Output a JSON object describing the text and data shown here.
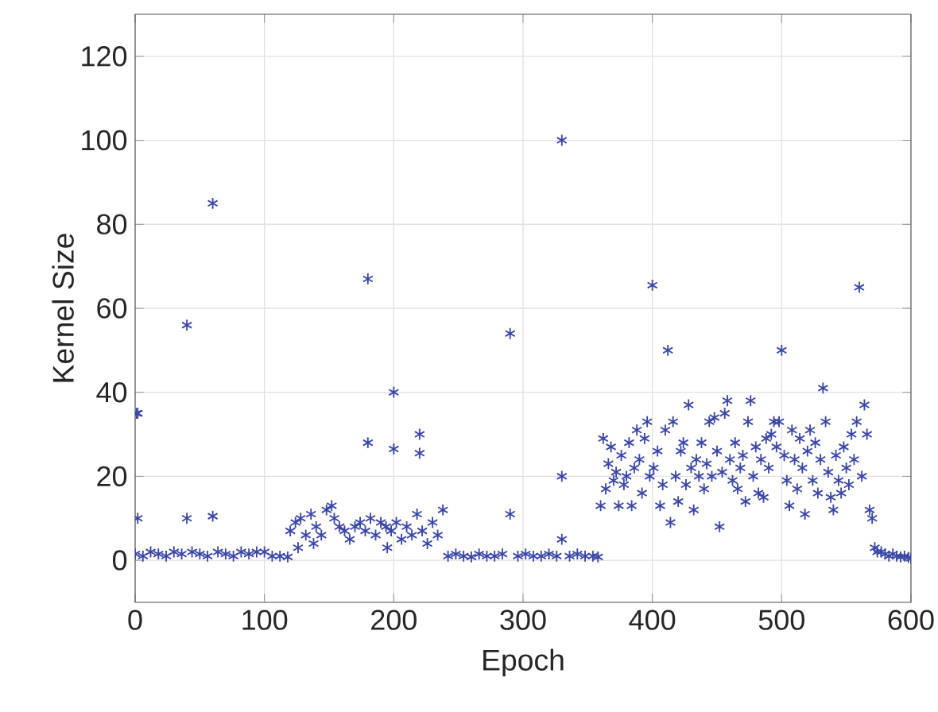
{
  "chart_data": {
    "type": "scatter",
    "xlabel": "Epoch",
    "ylabel": "Kernel Size",
    "xlim": [
      0,
      600
    ],
    "ylim": [
      -10,
      130
    ],
    "xticks": [
      0,
      100,
      200,
      300,
      400,
      500,
      600
    ],
    "yticks": [
      0,
      20,
      40,
      60,
      80,
      100,
      120
    ],
    "grid": true,
    "marker": "cross",
    "series": [
      {
        "color": "#3a47a6",
        "x": [
          1,
          2,
          2,
          40,
          40,
          60,
          60,
          0,
          6,
          12,
          18,
          24,
          30,
          36,
          44,
          50,
          56,
          64,
          70,
          76,
          82,
          88,
          94,
          100,
          106,
          112,
          118,
          120,
          124,
          126,
          128,
          132,
          136,
          138,
          140,
          144,
          148,
          152,
          154,
          158,
          162,
          166,
          170,
          174,
          178,
          180,
          180,
          182,
          186,
          190,
          194,
          195,
          198,
          200,
          200,
          202,
          206,
          210,
          214,
          218,
          220,
          220,
          222,
          226,
          230,
          234,
          238,
          242,
          248,
          254,
          260,
          266,
          272,
          278,
          284,
          290,
          290,
          296,
          302,
          308,
          314,
          320,
          326,
          330,
          330,
          330,
          336,
          342,
          348,
          354,
          358,
          360,
          362,
          364,
          366,
          368,
          370,
          372,
          374,
          376,
          378,
          380,
          382,
          384,
          386,
          388,
          390,
          392,
          394,
          396,
          398,
          400,
          401,
          404,
          406,
          408,
          410,
          412,
          414,
          416,
          418,
          420,
          422,
          424,
          426,
          428,
          430,
          432,
          434,
          436,
          438,
          440,
          442,
          444,
          446,
          448,
          450,
          452,
          454,
          456,
          458,
          460,
          462,
          464,
          466,
          468,
          470,
          472,
          474,
          476,
          478,
          480,
          482,
          484,
          486,
          488,
          490,
          492,
          494,
          496,
          498,
          500,
          502,
          504,
          506,
          508,
          510,
          512,
          514,
          516,
          518,
          520,
          522,
          524,
          526,
          528,
          530,
          532,
          534,
          536,
          538,
          540,
          542,
          544,
          546,
          548,
          550,
          552,
          554,
          556,
          558,
          560,
          562,
          564,
          566,
          568,
          570,
          572,
          574,
          577,
          580,
          583,
          586,
          589,
          592,
          595,
          598,
          600
        ],
        "values": [
          35,
          35,
          10,
          56,
          10,
          85,
          10.5,
          1.5,
          1,
          2,
          1.5,
          1,
          2,
          1.5,
          2,
          1.5,
          1,
          2,
          1.5,
          1,
          2,
          1.5,
          2,
          2,
          1,
          1,
          0.8,
          7,
          9,
          3,
          10,
          6,
          11,
          4,
          8,
          6,
          12,
          13,
          10,
          8,
          7,
          5,
          8,
          9,
          7,
          67,
          28,
          10,
          6,
          9,
          8,
          3,
          7,
          40,
          26.5,
          9,
          5,
          8,
          6,
          11,
          30,
          25.5,
          7,
          4,
          9,
          6,
          12,
          1,
          1.5,
          1,
          0.8,
          1.5,
          1,
          1,
          1.5,
          54,
          11,
          1,
          1.5,
          1,
          1,
          1.5,
          1,
          100,
          20,
          5,
          1,
          1.5,
          1,
          1,
          0.8,
          13,
          29,
          17,
          23,
          27,
          19,
          21,
          13,
          25,
          18,
          20,
          28,
          13,
          22,
          31,
          24,
          16,
          29,
          33,
          20,
          65.5,
          22,
          26,
          13,
          18,
          31,
          50,
          9,
          33,
          20,
          14,
          26,
          28,
          18,
          37,
          22,
          12,
          24,
          20,
          28,
          17,
          23,
          33,
          20,
          34,
          26,
          8,
          21,
          35,
          38,
          24,
          19,
          28,
          17,
          22,
          25,
          14,
          33,
          38,
          20,
          27,
          16,
          24,
          15,
          29,
          22,
          30,
          33,
          27,
          33,
          50,
          25,
          19,
          13,
          31,
          24,
          17,
          29,
          22,
          11,
          26,
          31,
          19,
          28,
          16,
          24,
          41,
          33,
          21,
          15,
          12,
          25,
          19,
          16,
          27,
          22,
          18,
          30,
          24,
          33,
          65,
          20,
          37,
          30,
          12,
          10,
          3,
          2,
          2,
          1.5,
          1,
          1.5,
          1,
          0.8,
          1,
          0.7,
          0.5
        ]
      }
    ]
  }
}
